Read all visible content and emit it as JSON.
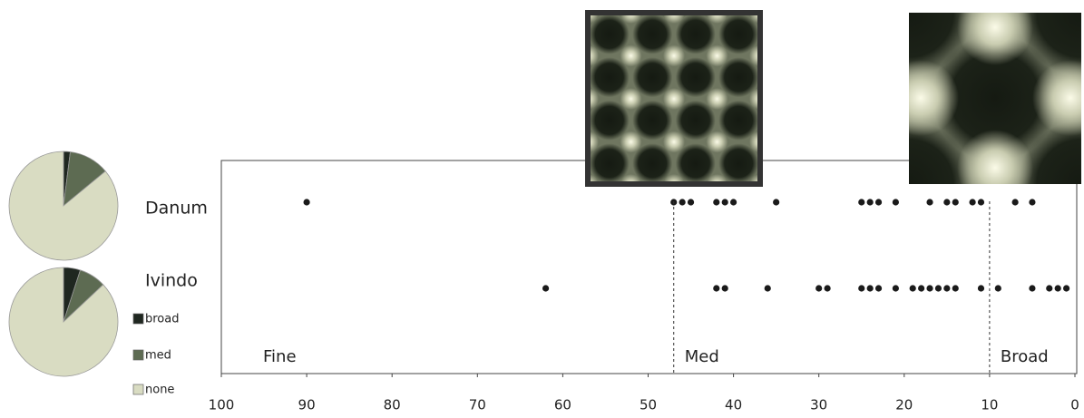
{
  "chart_data": [
    {
      "type": "strip",
      "categories": [
        "Danum",
        "Ivindo"
      ],
      "series": [
        {
          "values": [
            90,
            47,
            46,
            45,
            42,
            41,
            40,
            35,
            25,
            24,
            23,
            21,
            17,
            15,
            14,
            12,
            11,
            7,
            5
          ]
        },
        {
          "values": [
            62,
            42,
            41,
            36,
            30,
            29,
            25,
            24,
            23,
            21,
            19,
            18,
            17,
            16,
            15,
            14,
            11,
            9,
            5,
            3,
            2,
            1
          ]
        }
      ],
      "color": "#1a1a1a",
      "xlim": [
        100,
        0
      ],
      "xticks": [
        100,
        90,
        80,
        70,
        60,
        50,
        40,
        30,
        20,
        10,
        0
      ],
      "regions": [
        {
          "label": "Fine"
        },
        {
          "label": "Med",
          "from": 47
        },
        {
          "label": "Broad",
          "from": 10
        }
      ]
    },
    {
      "type": "pie",
      "categories": [
        "broad",
        "med",
        "none"
      ],
      "colors": [
        "#1f2720",
        "#5d6b52",
        "#d9dcc2"
      ],
      "series": [
        {
          "values": [
            2,
            12,
            86
          ]
        },
        {
          "values": [
            5,
            8,
            87
          ]
        }
      ]
    }
  ]
}
